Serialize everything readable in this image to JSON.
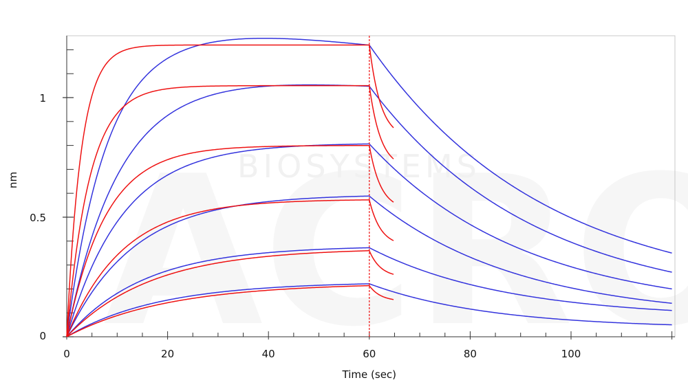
{
  "chart_data": {
    "type": "line",
    "title": "",
    "xlabel": "Time (sec)",
    "ylabel": "nm",
    "xlim": [
      0,
      120
    ],
    "ylim": [
      -0.02,
      1.27
    ],
    "x_ticks": [
      0,
      20,
      40,
      60,
      80,
      100
    ],
    "x_tick_labels": [
      "0",
      "20",
      "40",
      "60",
      "80",
      "100"
    ],
    "y_ticks": [
      0,
      0.5,
      1
    ],
    "y_tick_labels": [
      "0",
      "0.5",
      "1"
    ],
    "y_minor_ticks": [
      0.1,
      0.2,
      0.3,
      0.4,
      0.6,
      0.7,
      0.8,
      0.9,
      1.1,
      1.2
    ],
    "association_end": 60,
    "grid": false,
    "colors": {
      "measured": "#3333dd",
      "fit": "#ee1111",
      "divider": "#ee1111",
      "frame": "#c8c8c8"
    },
    "watermark": {
      "text": "BIOSYSTEMS",
      "logo_text": "ACRO"
    },
    "series": [
      {
        "kind": "measured",
        "peak": 1.22,
        "overshoot": 0.04,
        "k_assoc": 0.13,
        "dissoc_end": 0.35,
        "tau_dissoc": 35
      },
      {
        "kind": "measured",
        "peak": 1.05,
        "overshoot": 0.02,
        "k_assoc": 0.1,
        "dissoc_end": 0.27,
        "tau_dissoc": 33
      },
      {
        "kind": "measured",
        "peak": 0.81,
        "overshoot": 0.0,
        "k_assoc": 0.09,
        "dissoc_end": 0.2,
        "tau_dissoc": 31
      },
      {
        "kind": "measured",
        "peak": 0.595,
        "overshoot": 0.0,
        "k_assoc": 0.075,
        "dissoc_end": 0.14,
        "tau_dissoc": 29
      },
      {
        "kind": "measured",
        "peak": 0.38,
        "overshoot": 0.0,
        "k_assoc": 0.065,
        "dissoc_end": 0.11,
        "tau_dissoc": 27
      },
      {
        "kind": "measured",
        "peak": 0.23,
        "overshoot": 0.0,
        "k_assoc": 0.055,
        "dissoc_end": 0.05,
        "tau_dissoc": 24
      },
      {
        "kind": "fit",
        "peak": 1.22,
        "k_assoc": 0.35,
        "dissoc_to": 0.87,
        "dissoc_x_end": 65
      },
      {
        "kind": "fit",
        "peak": 1.05,
        "k_assoc": 0.22,
        "dissoc_to": 0.74,
        "dissoc_x_end": 65
      },
      {
        "kind": "fit",
        "peak": 0.8,
        "k_assoc": 0.13,
        "dissoc_to": 0.56,
        "dissoc_x_end": 65
      },
      {
        "kind": "fit",
        "peak": 0.575,
        "k_assoc": 0.09,
        "dissoc_to": 0.4,
        "dissoc_x_end": 65
      },
      {
        "kind": "fit",
        "peak": 0.37,
        "k_assoc": 0.06,
        "dissoc_to": 0.26,
        "dissoc_x_end": 65
      },
      {
        "kind": "fit",
        "peak": 0.225,
        "k_assoc": 0.05,
        "dissoc_to": 0.155,
        "dissoc_x_end": 65
      }
    ]
  }
}
